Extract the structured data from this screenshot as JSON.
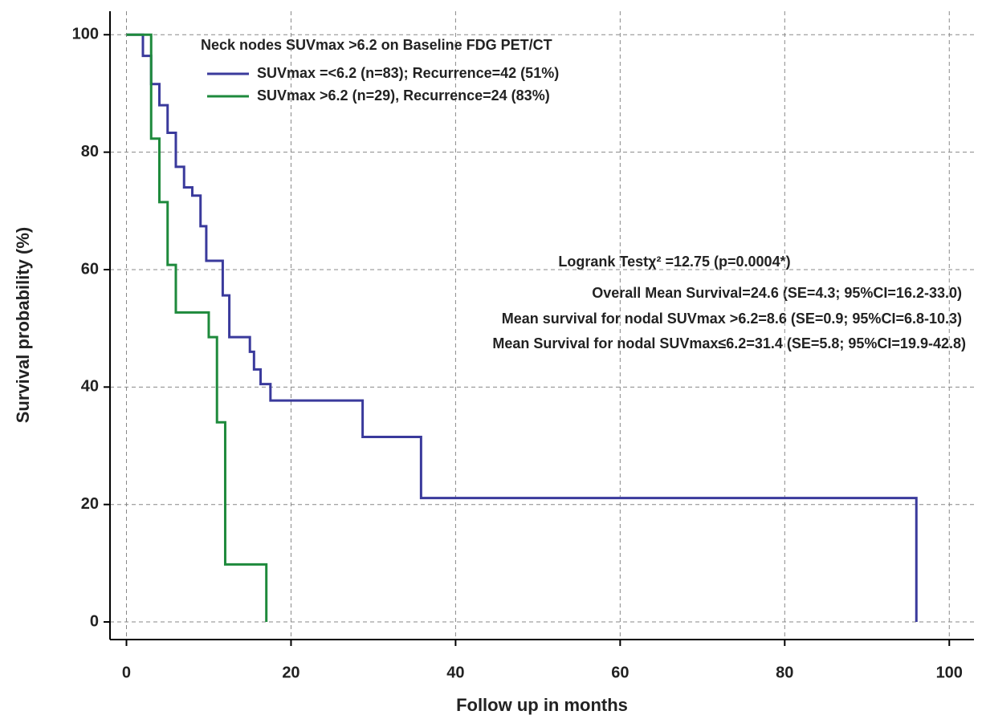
{
  "chart_data": {
    "type": "line",
    "drawstyle": "steps-post",
    "legend_title": "Neck nodes SUVmax >6.2 on Baseline FDG PET/CT",
    "x_label": "Follow up in months",
    "y_label": "Survival probability (%)",
    "annotations": [
      "Logrank Testχ² =12.75 (p=0.0004*)",
      "Overall Mean Survival=24.6 (SE=4.3; 95%CI=16.2-33.0)",
      "Mean survival for nodal SUVmax >6.2=8.6 (SE=0.9; 95%CI=6.8-10.3)",
      "Mean Survival for nodal SUVmax≤6.2=31.4 (SE=5.8; 95%CI=19.9-42.8)"
    ],
    "xlim": [
      -2,
      103
    ],
    "ylim": [
      -3,
      104
    ],
    "xticks": [
      0,
      20,
      40,
      60,
      80,
      100
    ],
    "yticks": [
      0,
      20,
      40,
      60,
      80,
      100
    ],
    "grid": true,
    "series": [
      {
        "name": "SUVmax =<6.2 (n=83); Recurrence=42 (51%)",
        "color": "#3a3a9c",
        "x": [
          0,
          2,
          3,
          4,
          5,
          6,
          7,
          8,
          9,
          9.7,
          11.7,
          12.5,
          15,
          15.5,
          16.3,
          17.5,
          28.7,
          35.8,
          96
        ],
        "values": [
          100,
          96.4,
          91.6,
          88,
          83.3,
          77.5,
          74,
          72.6,
          67.4,
          61.5,
          55.6,
          48.5,
          46,
          43,
          40.5,
          37.7,
          31.5,
          21.1,
          0
        ]
      },
      {
        "name": "SUVmax >6.2 (n=29), Recurrence=24 (83%)",
        "color": "#1e8a3c",
        "x": [
          0,
          3,
          4,
          5,
          6,
          10,
          11,
          12,
          17
        ],
        "values": [
          100,
          82.3,
          71.5,
          60.8,
          52.7,
          48.5,
          34,
          9.8,
          0
        ]
      }
    ]
  }
}
